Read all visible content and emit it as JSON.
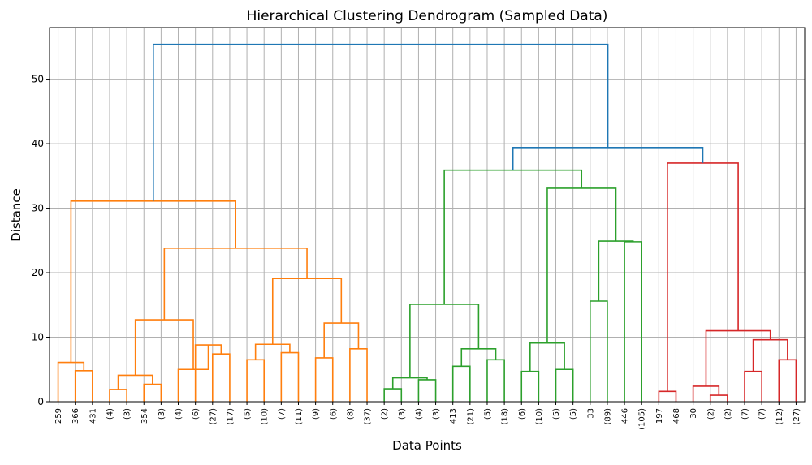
{
  "chart_data": {
    "type": "dendrogram",
    "title": "Hierarchical Clustering Dendrogram (Sampled Data)",
    "xlabel": "Data Points",
    "ylabel": "Distance",
    "ylim": [
      0,
      58
    ],
    "yticks": [
      0,
      10,
      20,
      30,
      40,
      50
    ],
    "grid": true,
    "leaf_labels": [
      "259",
      "366",
      "431",
      "(4)",
      "(3)",
      "354",
      "(3)",
      "(4)",
      "(6)",
      "(27)",
      "(17)",
      "(5)",
      "(10)",
      "(7)",
      "(11)",
      "(9)",
      "(6)",
      "(8)",
      "(37)",
      "(2)",
      "(3)",
      "(4)",
      "(3)",
      "413",
      "(21)",
      "(5)",
      "(18)",
      "(6)",
      "(10)",
      "(5)",
      "(5)",
      "33",
      "(89)",
      "446",
      "(105)",
      "197",
      "468",
      "30",
      "(2)",
      "(2)",
      "(7)",
      "(7)",
      "(12)",
      "(27)"
    ],
    "colors": {
      "above_threshold": "#1f77b4",
      "cluster_1": "#ff7f0e",
      "cluster_2": "#2ca02c",
      "cluster_3": "#d62728",
      "grid": "#b0b0b0"
    },
    "links": [
      {
        "c": "cluster_1",
        "l": [
          1,
          2
        ],
        "h": 4.8
      },
      {
        "c": "cluster_1",
        "l": [
          0,
          "M0"
        ],
        "h": 6.1
      },
      {
        "c": "cluster_1",
        "l": [
          3,
          4
        ],
        "h": 1.9
      },
      {
        "c": "cluster_1",
        "l": [
          5,
          6
        ],
        "h": 2.7
      },
      {
        "c": "cluster_1",
        "l": [
          "M2",
          "M3"
        ],
        "h": 4.1
      },
      {
        "c": "cluster_1",
        "l": [
          9,
          10
        ],
        "h": 7.4
      },
      {
        "c": "cluster_1",
        "l": [
          8,
          "M5"
        ],
        "h": 8.8
      },
      {
        "c": "cluster_1",
        "l": [
          7,
          "M6"
        ],
        "h": 5.0
      },
      {
        "c": "cluster_1",
        "l": [
          "M4",
          "M7"
        ],
        "h": 12.7
      },
      {
        "c": "cluster_1",
        "l": [
          13,
          14
        ],
        "h": 7.6
      },
      {
        "c": "cluster_1",
        "l": [
          11,
          12
        ],
        "h": 6.5
      },
      {
        "c": "cluster_1",
        "l": [
          "M10",
          "M9"
        ],
        "h": 8.9
      },
      {
        "c": "cluster_1",
        "l": [
          15,
          16
        ],
        "h": 6.8
      },
      {
        "c": "cluster_1",
        "l": [
          17,
          18
        ],
        "h": 8.2
      },
      {
        "c": "cluster_1",
        "l": [
          "M12",
          "M13"
        ],
        "h": 12.2
      },
      {
        "c": "cluster_1",
        "l": [
          "M11",
          "M14"
        ],
        "h": 19.1
      },
      {
        "c": "cluster_1",
        "l": [
          "M8",
          "M15"
        ],
        "h": 23.8
      },
      {
        "c": "cluster_1",
        "l": [
          "M1",
          "M16"
        ],
        "h": 31.1
      },
      {
        "c": "cluster_2",
        "l": [
          19,
          20
        ],
        "h": 2.0
      },
      {
        "c": "cluster_2",
        "l": [
          21,
          22
        ],
        "h": 3.4
      },
      {
        "c": "cluster_2",
        "l": [
          "M18",
          "M19"
        ],
        "h": 3.7
      },
      {
        "c": "cluster_2",
        "l": [
          23,
          24
        ],
        "h": 5.5
      },
      {
        "c": "cluster_2",
        "l": [
          25,
          26
        ],
        "h": 6.5
      },
      {
        "c": "cluster_2",
        "l": [
          "M21",
          "M22"
        ],
        "h": 8.2
      },
      {
        "c": "cluster_2",
        "l": [
          "M20",
          "M23"
        ],
        "h": 15.1
      },
      {
        "c": "cluster_2",
        "l": [
          27,
          28
        ],
        "h": 4.7
      },
      {
        "c": "cluster_2",
        "l": [
          29,
          30
        ],
        "h": 5.0
      },
      {
        "c": "cluster_2",
        "l": [
          "M25",
          "M26"
        ],
        "h": 9.1
      },
      {
        "c": "cluster_2",
        "l": [
          31,
          32
        ],
        "h": 15.6
      },
      {
        "c": "cluster_2",
        "l": [
          33,
          34
        ],
        "h": 24.8
      },
      {
        "c": "cluster_2",
        "l": [
          "M28",
          "M29"
        ],
        "h": 24.9
      },
      {
        "c": "cluster_2",
        "l": [
          "M27",
          "M30"
        ],
        "h": 33.1
      },
      {
        "c": "cluster_2",
        "l": [
          "M24",
          "M31"
        ],
        "h": 35.9
      },
      {
        "c": "cluster_3",
        "l": [
          35,
          36
        ],
        "h": 1.6
      },
      {
        "c": "cluster_3",
        "l": [
          38,
          39
        ],
        "h": 1.0
      },
      {
        "c": "cluster_3",
        "l": [
          37,
          "M34"
        ],
        "h": 2.4
      },
      {
        "c": "cluster_3",
        "l": [
          40,
          41
        ],
        "h": 4.7
      },
      {
        "c": "cluster_3",
        "l": [
          42,
          43
        ],
        "h": 6.5
      },
      {
        "c": "cluster_3",
        "l": [
          "M36",
          "M37"
        ],
        "h": 9.6
      },
      {
        "c": "cluster_3",
        "l": [
          "M35",
          "M38"
        ],
        "h": 11.0
      },
      {
        "c": "cluster_3",
        "l": [
          "M33",
          "M39"
        ],
        "h": 37.0
      },
      {
        "c": "above_threshold",
        "l": [
          "M32",
          "M40"
        ],
        "h": 39.4
      },
      {
        "c": "above_threshold",
        "l": [
          "M17",
          "M41"
        ],
        "h": 55.4
      }
    ]
  }
}
